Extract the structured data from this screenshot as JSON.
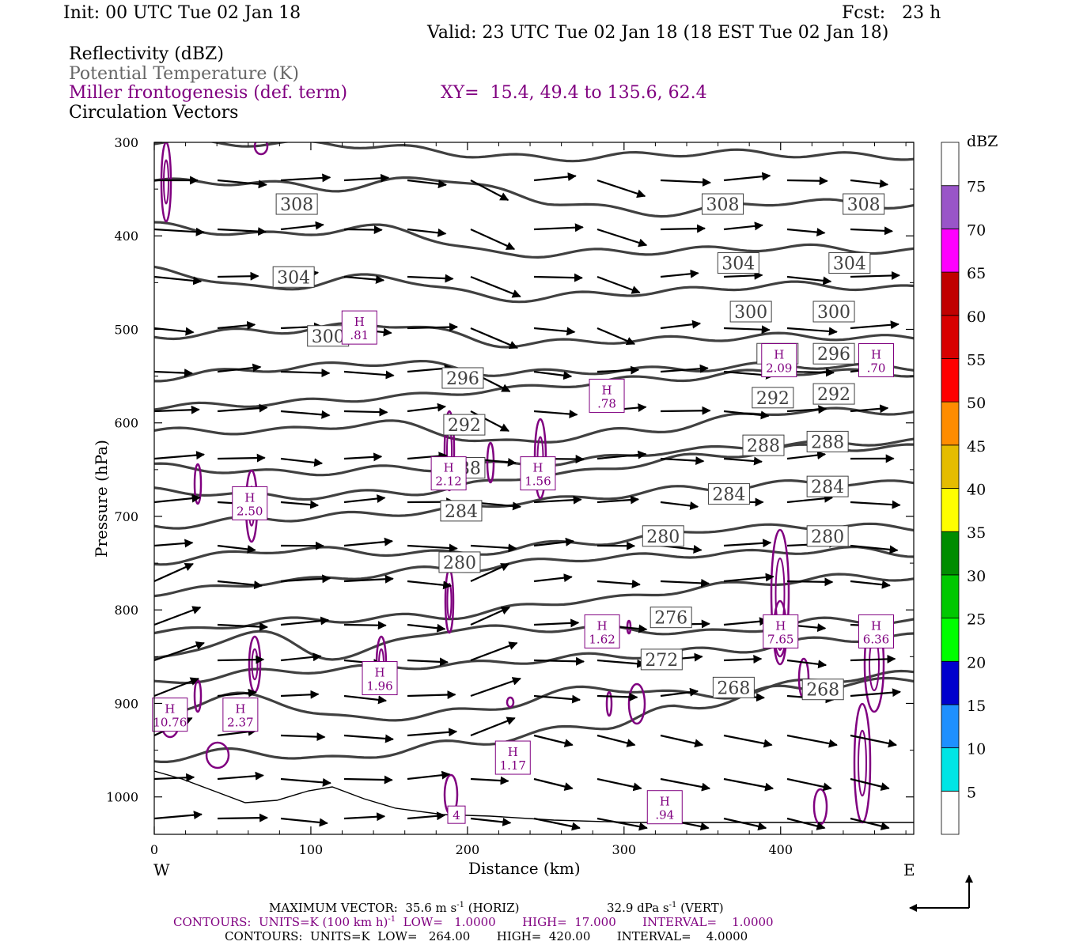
{
  "header": {
    "init": "Init: 00 UTC Tue 02 Jan 18",
    "fcst": "Fcst:   23 h",
    "valid": "Valid: 23 UTC Tue 02 Jan 18 (18 EST Tue 02 Jan 18)",
    "field1": "Reflectivity (dBZ)",
    "field2": "Potential Temperature (K)",
    "field3": "Miller frontogenesis (def. term)",
    "xy": "XY=  15.4, 49.4 to 135.6, 62.4",
    "field4": "Circulation Vectors"
  },
  "colors": {
    "theta": "#404040",
    "frontogenesis": "#800080",
    "vectors": "#000000"
  },
  "chart_data": {
    "type": "cross-section",
    "xlabel": "Distance (km)",
    "ylabel": "Pressure (hPa)",
    "xlim": [
      0,
      485
    ],
    "ylim": [
      1040,
      300
    ],
    "x_ticks": [
      "0",
      "100",
      "200",
      "300",
      "400"
    ],
    "y_ticks": [
      "300",
      "400",
      "500",
      "600",
      "700",
      "800",
      "900",
      "1000"
    ],
    "left_end": "W",
    "right_end": "E",
    "theta_contours": [
      {
        "label": "308",
        "label_positions": [
          [
            91,
            366
          ],
          [
            363,
            366
          ],
          [
            453,
            366
          ]
        ]
      },
      {
        "label": "304",
        "label_positions": [
          [
            89,
            444
          ],
          [
            373,
            429
          ],
          [
            444,
            429
          ]
        ]
      },
      {
        "label": "300",
        "label_positions": [
          [
            111,
            507
          ],
          [
            381,
            481
          ],
          [
            434,
            481
          ]
        ]
      },
      {
        "label": "296",
        "label_positions": [
          [
            197,
            552
          ],
          [
            398,
            526
          ],
          [
            434,
            526
          ]
        ]
      },
      {
        "label": "292",
        "label_positions": [
          [
            198,
            602
          ],
          [
            395,
            573
          ],
          [
            434,
            569
          ]
        ]
      },
      {
        "label": "288",
        "label_positions": [
          [
            198,
            648
          ],
          [
            389,
            624
          ],
          [
            430,
            620
          ]
        ]
      },
      {
        "label": "284",
        "label_positions": [
          [
            196,
            694
          ],
          [
            367,
            676
          ],
          [
            430,
            668
          ]
        ]
      },
      {
        "label": "280",
        "label_positions": [
          [
            195,
            749
          ],
          [
            325,
            721
          ],
          [
            430,
            721
          ]
        ]
      },
      {
        "label": "276",
        "label_positions": [
          [
            330,
            808
          ]
        ]
      },
      {
        "label": "272",
        "label_positions": [
          [
            324,
            853
          ]
        ]
      },
      {
        "label": "268",
        "label_positions": [
          [
            370,
            883
          ],
          [
            427,
            885
          ]
        ]
      }
    ],
    "frontogenesis_maxima": [
      {
        "label": "H",
        "value": ".81",
        "x": 131,
        "p": 498
      },
      {
        "label": "H",
        "value": "2.09",
        "x": 399,
        "p": 533
      },
      {
        "label": "H",
        "value": ".70",
        "x": 461,
        "p": 533
      },
      {
        "label": "H",
        "value": ".78",
        "x": 289,
        "p": 571
      },
      {
        "label": "H",
        "value": "2.12",
        "x": 188,
        "p": 654
      },
      {
        "label": "H",
        "value": "1.56",
        "x": 245,
        "p": 654
      },
      {
        "label": "H",
        "value": "2.50",
        "x": 61,
        "p": 686
      },
      {
        "label": "H",
        "value": "1.62",
        "x": 286,
        "p": 823
      },
      {
        "label": "H",
        "value": "7.65",
        "x": 400,
        "p": 823
      },
      {
        "label": "H",
        "value": "6.36",
        "x": 461,
        "p": 823
      },
      {
        "label": "H",
        "value": "1.96",
        "x": 144,
        "p": 873
      },
      {
        "label": "H",
        "value": "2.37",
        "x": 55,
        "p": 912
      },
      {
        "label": "H",
        "value": "10.76",
        "x": 10,
        "p": 912
      },
      {
        "label": "H",
        "value": "1.17",
        "x": 229,
        "p": 958
      },
      {
        "label": "H",
        "value": ".94",
        "x": 326,
        "p": 1011
      },
      {
        "label": "",
        "value": "4",
        "x": 193,
        "p": 1019
      }
    ],
    "colorbar": {
      "title": "dBZ",
      "labels": [
        "5",
        "10",
        "15",
        "20",
        "25",
        "30",
        "35",
        "40",
        "45",
        "50",
        "55",
        "60",
        "65",
        "70",
        "75"
      ],
      "colors": [
        "#ffffff",
        "#00e5e5",
        "#1e90ff",
        "#0000cd",
        "#00ff00",
        "#00c800",
        "#008c00",
        "#ffff00",
        "#e5bc00",
        "#ff8c00",
        "#ff0000",
        "#d70000",
        "#c00000",
        "#ff00ff",
        "#9955c8",
        "#ffffff"
      ]
    }
  },
  "footer": {
    "max_vector": "MAXIMUM VECTOR:  35.6 m s",
    "max_sup1": "-1",
    "max_horiz": " (HORIZ)",
    "max_vert": "32.9 dPa s",
    "max_sup2": "-1",
    "max_vert_end": " (VERT)",
    "contours1_a": "CONTOURS:  UNITS=K (100 km h)",
    "contours1_sup": "-1",
    "contours1_b": "  LOW=   1.0000       HIGH=  17.000       INTERVAL=    1.0000",
    "contours2": "CONTOURS:  UNITS=K  LOW=   264.00       HIGH=  420.00       INTERVAL=    4.0000"
  }
}
